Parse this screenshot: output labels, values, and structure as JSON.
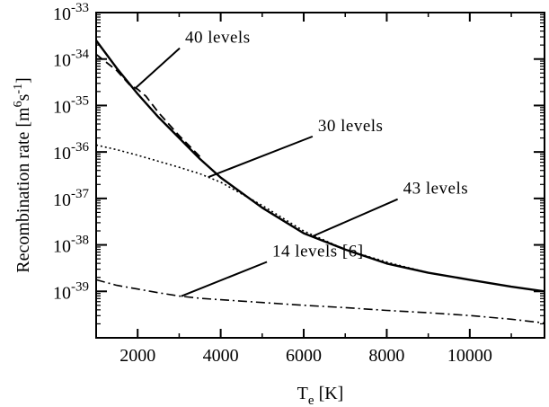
{
  "chart_data": {
    "type": "line",
    "xlabel": "T",
    "xlabel_subscript": "e",
    "xlabel_unit": " [K]",
    "ylabel": "Recombination rate [m",
    "ylabel_sup1": "6",
    "ylabel_mid": "s",
    "ylabel_sup2": "-1",
    "ylabel_end": "]",
    "xlim": [
      1000,
      11800
    ],
    "ylim_exponents": [
      -40,
      -33
    ],
    "yscale": "log",
    "x_ticks": [
      2000,
      4000,
      6000,
      8000,
      10000
    ],
    "x_tick_labels": [
      "2000",
      "4000",
      "6000",
      "8000",
      "10000"
    ],
    "y_ticks": [
      -39,
      -38,
      -37,
      -36,
      -35,
      -34,
      -33
    ],
    "y_tick_base": "10",
    "y_tick_exponents": [
      "-39",
      "-38",
      "-37",
      "-36",
      "-35",
      "-34",
      "-33"
    ],
    "grid": false,
    "series": [
      {
        "name": "43 levels",
        "style": "solid",
        "x": [
          1000,
          1500,
          2000,
          2500,
          3000,
          3500,
          4000,
          5000,
          6000,
          7000,
          8000,
          9000,
          10000,
          11000,
          11800
        ],
        "log10_y": [
          -33.6,
          -34.2,
          -34.75,
          -35.25,
          -35.7,
          -36.15,
          -36.55,
          -37.2,
          -37.75,
          -38.1,
          -38.4,
          -38.6,
          -38.75,
          -38.9,
          -39.0
        ]
      },
      {
        "name": "40 levels",
        "style": "dashed",
        "x": [
          1000,
          1500,
          1800,
          2000,
          2200,
          2500,
          3000,
          3500
        ],
        "log10_y": [
          -33.9,
          -34.25,
          -34.55,
          -34.65,
          -34.8,
          -35.15,
          -35.65,
          -36.1
        ]
      },
      {
        "name": "30 levels",
        "style": "dotted",
        "x": [
          1000,
          1500,
          2000,
          2500,
          3000,
          3500,
          4000,
          5000,
          6000,
          7000,
          8000,
          9000,
          10000,
          11000,
          11800
        ],
        "log10_y": [
          -35.85,
          -35.95,
          -36.07,
          -36.2,
          -36.33,
          -36.47,
          -36.65,
          -37.15,
          -37.7,
          -38.1,
          -38.37,
          -38.6,
          -38.75,
          -38.9,
          -39.0
        ]
      },
      {
        "name": "14 levels [6]",
        "style": "dashdot",
        "x": [
          1000,
          1500,
          2000,
          2500,
          3000,
          3500,
          4000,
          5000,
          6000,
          7000,
          8000,
          9000,
          10000,
          11000,
          11800
        ],
        "log10_y": [
          -38.75,
          -38.87,
          -38.95,
          -39.03,
          -39.1,
          -39.15,
          -39.18,
          -39.24,
          -39.3,
          -39.35,
          -39.41,
          -39.46,
          -39.52,
          -39.6,
          -39.68
        ]
      }
    ],
    "annotations": [
      {
        "text": "40 levels",
        "series": "40 levels",
        "at_x": 1950,
        "label_anchor_x": 3100,
        "label_anchor_log10_y": -33.65
      },
      {
        "text": "30 levels",
        "series": "30 levels",
        "at_x": 3700,
        "label_anchor_x": 6300,
        "label_anchor_log10_y": -35.55
      },
      {
        "text": "43 levels",
        "series": "43 levels",
        "at_x": 6200,
        "label_anchor_x": 8350,
        "label_anchor_log10_y": -36.9
      },
      {
        "text": "14 levels [6]",
        "series": "14 levels [6]",
        "at_x": 3050,
        "label_anchor_x": 5200,
        "label_anchor_log10_y": -38.25
      }
    ]
  }
}
